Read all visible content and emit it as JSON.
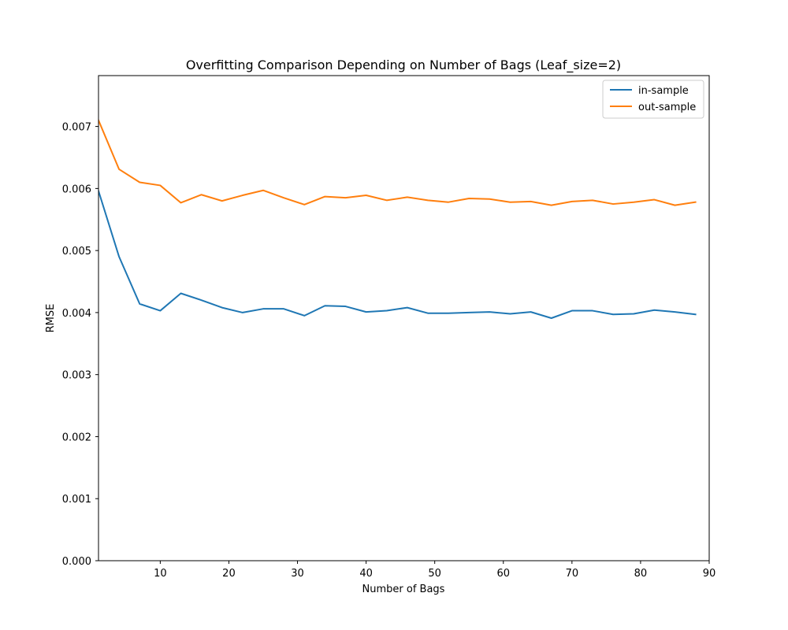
{
  "chart_data": {
    "type": "line",
    "title": "Overfitting Comparison Depending on Number of Bags (Leaf_size=2)",
    "xlabel": "Number of Bags",
    "ylabel": "RMSE",
    "xlim": [
      1,
      90
    ],
    "ylim": [
      0.0,
      0.00782
    ],
    "xticks": [
      10,
      20,
      30,
      40,
      50,
      60,
      70,
      80,
      90
    ],
    "xtick_labels": [
      "10",
      "20",
      "30",
      "40",
      "50",
      "60",
      "70",
      "80",
      "90"
    ],
    "yticks": [
      0.0,
      0.001,
      0.002,
      0.003,
      0.004,
      0.005,
      0.006,
      0.007
    ],
    "ytick_labels": [
      "0.000",
      "0.001",
      "0.002",
      "0.003",
      "0.004",
      "0.005",
      "0.006",
      "0.007"
    ],
    "grid": false,
    "legend_position": "top-right",
    "x": [
      1,
      4,
      7,
      10,
      13,
      16,
      19,
      22,
      25,
      28,
      31,
      34,
      37,
      40,
      43,
      46,
      49,
      52,
      55,
      58,
      61,
      64,
      67,
      70,
      73,
      76,
      79,
      82,
      85,
      88
    ],
    "series": [
      {
        "name": "in-sample",
        "color": "#1f77b4",
        "values": [
          0.00596,
          0.0049,
          0.00414,
          0.00403,
          0.00431,
          0.0042,
          0.00408,
          0.004,
          0.00406,
          0.00406,
          0.00395,
          0.00411,
          0.0041,
          0.00401,
          0.00403,
          0.00408,
          0.00399,
          0.00399,
          0.004,
          0.00401,
          0.00398,
          0.00401,
          0.00391,
          0.00403,
          0.00403,
          0.00397,
          0.00398,
          0.00404,
          0.00401,
          0.00397
        ]
      },
      {
        "name": "out-sample",
        "color": "#ff7f0e",
        "values": [
          0.0071,
          0.00631,
          0.0061,
          0.00605,
          0.00577,
          0.0059,
          0.0058,
          0.00589,
          0.00597,
          0.00585,
          0.00574,
          0.00587,
          0.00585,
          0.00589,
          0.00581,
          0.00586,
          0.00581,
          0.00578,
          0.00584,
          0.00583,
          0.00578,
          0.00579,
          0.00573,
          0.00579,
          0.00581,
          0.00575,
          0.00578,
          0.00582,
          0.00573,
          0.00578
        ]
      }
    ]
  }
}
